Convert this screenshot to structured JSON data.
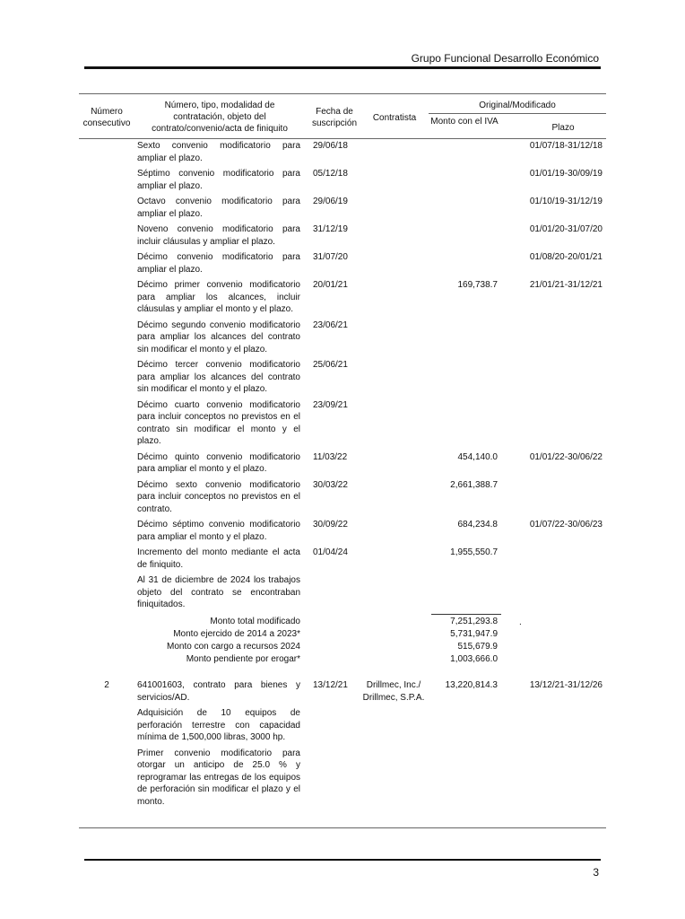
{
  "header": {
    "title": "Grupo Funcional Desarrollo Económico"
  },
  "table": {
    "headers": {
      "num": "Número consecutivo",
      "desc": "Número, tipo, modalidad de contratación, objeto del contrato/convenio/acta de finiquito",
      "date": "Fecha de suscripción",
      "contractor": "Contratista",
      "group": "Original/Modificado",
      "amount": "Monto con el IVA",
      "term": "Plazo"
    },
    "rows": [
      {
        "num": "",
        "desc": [
          "Sexto convenio modificatorio para ampliar el plazo."
        ],
        "date": "29/06/18",
        "contractor": "",
        "amount": "",
        "term": "01/07/18-31/12/18"
      },
      {
        "num": "",
        "desc": [
          "Séptimo convenio modificatorio para ampliar el plazo."
        ],
        "date": "05/12/18",
        "contractor": "",
        "amount": "",
        "term": "01/01/19-30/09/19"
      },
      {
        "num": "",
        "desc": [
          "Octavo convenio modificatorio para ampliar el plazo."
        ],
        "date": "29/06/19",
        "contractor": "",
        "amount": "",
        "term": "01/10/19-31/12/19"
      },
      {
        "num": "",
        "desc": [
          "Noveno convenio modificatorio para incluir cláusulas y ampliar el plazo."
        ],
        "date": "31/12/19",
        "contractor": "",
        "amount": "",
        "term": "01/01/20-31/07/20"
      },
      {
        "num": "",
        "desc": [
          "Décimo convenio modificatorio para ampliar el plazo."
        ],
        "date": "31/07/20",
        "contractor": "",
        "amount": "",
        "term": "01/08/20-20/01/21"
      },
      {
        "num": "",
        "desc": [
          "Décimo primer convenio modificatorio para ampliar los alcances, incluir cláusulas y ampliar el monto y el plazo."
        ],
        "date": "20/01/21",
        "contractor": "",
        "amount": "169,738.7",
        "term": "21/01/21-31/12/21"
      },
      {
        "num": "",
        "desc": [
          "Décimo segundo convenio modificatorio para ampliar los alcances del contrato sin modificar el monto y el plazo."
        ],
        "date": "23/06/21",
        "contractor": "",
        "amount": "",
        "term": ""
      },
      {
        "num": "",
        "desc": [
          "Décimo tercer convenio modificatorio para ampliar los alcances del contrato sin modificar el monto y el plazo."
        ],
        "date": "25/06/21",
        "contractor": "",
        "amount": "",
        "term": ""
      },
      {
        "num": "",
        "desc": [
          "Décimo cuarto convenio modificatorio para incluir conceptos no previstos en el contrato sin modificar el monto y el plazo."
        ],
        "date": "23/09/21",
        "contractor": "",
        "amount": "",
        "term": ""
      },
      {
        "num": "",
        "desc": [
          "Décimo quinto convenio modificatorio para ampliar el monto y el plazo."
        ],
        "date": "11/03/22",
        "contractor": "",
        "amount": "454,140.0",
        "term": "01/01/22-30/06/22"
      },
      {
        "num": "",
        "desc": [
          "Décimo sexto convenio modificatorio para incluir conceptos no previstos en el contrato."
        ],
        "date": "30/03/22",
        "contractor": "",
        "amount": "2,661,388.7",
        "term": ""
      },
      {
        "num": "",
        "desc": [
          "Décimo séptimo convenio modificatorio para ampliar el monto y el plazo."
        ],
        "date": "30/09/22",
        "contractor": "",
        "amount": "684,234.8",
        "term": "01/07/22-30/06/23"
      },
      {
        "num": "",
        "desc": [
          "Incremento del monto mediante el acta de finiquito."
        ],
        "date": "01/04/24",
        "contractor": "",
        "amount": "1,955,550.7",
        "term": ""
      },
      {
        "num": "",
        "desc": [
          "Al 31 de diciembre de 2024 los trabajos objeto del contrato se encontraban finiquitados."
        ],
        "date": "",
        "contractor": "",
        "amount": "",
        "term": ""
      }
    ],
    "totals": [
      {
        "label": "Monto total modificado",
        "value": "7,251,293.8"
      },
      {
        "label": "Monto ejercido de 2014 a 2023*",
        "value": "5,731,947.9"
      },
      {
        "label": "Monto con cargo a recursos 2024",
        "value": "515,679.9"
      },
      {
        "label": "Monto pendiente por erogar*",
        "value": "1,003,666.0"
      }
    ],
    "totals_mark": ".",
    "rows2": [
      {
        "num": "2",
        "desc": [
          "641001603, contrato para bienes y servicios/AD.",
          "Adquisición de 10 equipos de perforación terrestre con capacidad mínima de 1,500,000 libras, 3000 hp.",
          "Primer convenio modificatorio para otorgar un anticipo de 25.0 % y reprogramar las entregas de los equipos de perforación sin modificar el plazo y el monto."
        ],
        "date": "13/12/21",
        "contractor": "Drillmec, Inc./ Drillmec, S.P.A.",
        "amount": "13,220,814.3",
        "term": "13/12/21-31/12/26"
      }
    ]
  },
  "footer": {
    "page": "3"
  }
}
